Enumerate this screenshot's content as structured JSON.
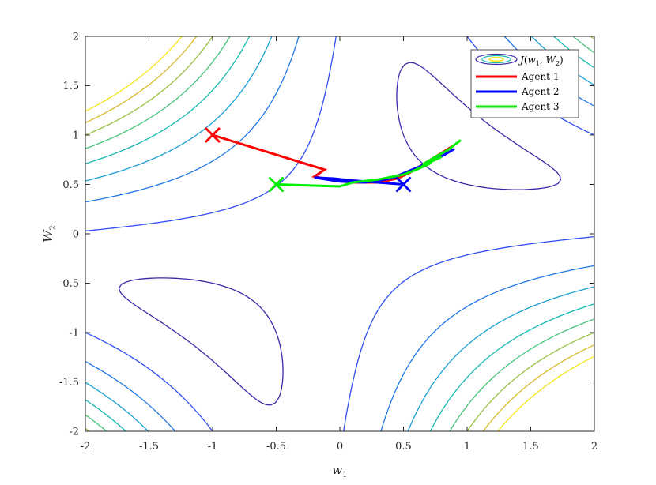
{
  "chart_data": {
    "type": "line",
    "title": "",
    "xlabel": {
      "base": "w",
      "sub": "1"
    },
    "ylabel": {
      "base": "W",
      "sub": "2"
    },
    "xlim": [
      -2,
      2
    ],
    "ylim": [
      -2,
      2
    ],
    "xticks": [
      -2,
      -1.5,
      -1,
      -0.5,
      0,
      0.5,
      1,
      1.5,
      2
    ],
    "yticks": [
      -2,
      -1.5,
      -1,
      -0.5,
      0,
      0.5,
      1,
      1.5,
      2
    ],
    "xtick_labels": [
      "-2",
      "-1.5",
      "-1",
      "-0.5",
      "0",
      "0.5",
      "1",
      "1.5",
      "2"
    ],
    "ytick_labels": [
      "-2",
      "-1.5",
      "-1",
      "-0.5",
      "0",
      "0.5",
      "1",
      "1.5",
      "2"
    ],
    "grid": false,
    "legend_position": "top-right",
    "contour": {
      "name": "J(w1,W2)",
      "levels": [
        0.1,
        0.4,
        0.8,
        1.2,
        1.6,
        2.0,
        2.4,
        2.8,
        3.2
      ],
      "colors": [
        "#3e26a8",
        "#2f4ff3",
        "#1e78e8",
        "#1ca0d4",
        "#16b9b1",
        "#47c37b",
        "#99c245",
        "#d9bb2c",
        "#f5e41b"
      ]
    },
    "series": [
      {
        "name": "Agent 1",
        "color": "#ff0000",
        "x": [
          -1.0,
          -0.12,
          -0.2,
          -0.05,
          0.1,
          0.3,
          0.45,
          0.55,
          0.65,
          0.75,
          0.85,
          0.9
        ],
        "y": [
          1.0,
          0.65,
          0.58,
          0.54,
          0.52,
          0.52,
          0.56,
          0.62,
          0.7,
          0.78,
          0.86,
          0.9
        ]
      },
      {
        "name": "Agent 2",
        "color": "#0000ff",
        "x": [
          0.5,
          0.3,
          0.1,
          -0.05,
          -0.2,
          0.0,
          0.2,
          0.4,
          0.55,
          0.7,
          0.82,
          0.9
        ],
        "y": [
          0.5,
          0.52,
          0.54,
          0.56,
          0.57,
          0.53,
          0.52,
          0.56,
          0.64,
          0.72,
          0.8,
          0.86
        ]
      },
      {
        "name": "Agent 3",
        "color": "#00ee00",
        "x": [
          -0.5,
          0.0,
          0.1,
          0.3,
          0.5,
          0.62,
          0.72,
          0.6,
          0.7,
          0.8,
          0.65,
          0.75,
          0.85,
          0.95
        ],
        "y": [
          0.5,
          0.48,
          0.52,
          0.55,
          0.6,
          0.66,
          0.72,
          0.65,
          0.72,
          0.78,
          0.7,
          0.78,
          0.85,
          0.95
        ]
      }
    ],
    "start_markers": [
      {
        "series": "Agent 1",
        "x": -1.0,
        "y": 1.0,
        "color": "#ff0000"
      },
      {
        "series": "Agent 2",
        "x": 0.5,
        "y": 0.5,
        "color": "#0000ff"
      },
      {
        "series": "Agent 3",
        "x": -0.5,
        "y": 0.5,
        "color": "#00ee00"
      }
    ]
  }
}
